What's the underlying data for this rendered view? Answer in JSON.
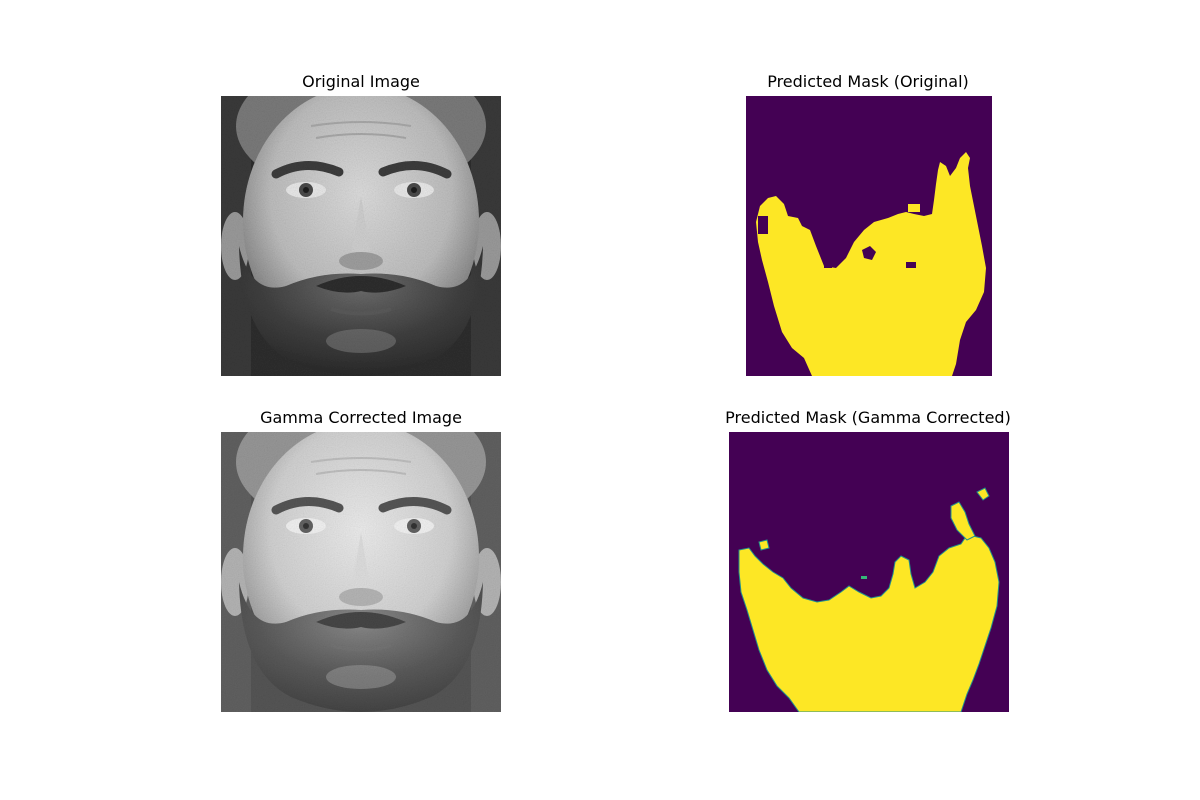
{
  "figure": {
    "panels": [
      {
        "title": "Original Image",
        "kind": "grayscale-photo"
      },
      {
        "title": "Predicted Mask (Original)",
        "kind": "segmentation-mask"
      },
      {
        "title": "Gamma Corrected Image",
        "kind": "grayscale-photo"
      },
      {
        "title": "Predicted Mask (Gamma Corrected)",
        "kind": "segmentation-mask"
      }
    ]
  },
  "colors": {
    "background": "#ffffff",
    "mask_background": "#440154",
    "mask_foreground": "#fde725",
    "mask_edge": "#21918c"
  }
}
